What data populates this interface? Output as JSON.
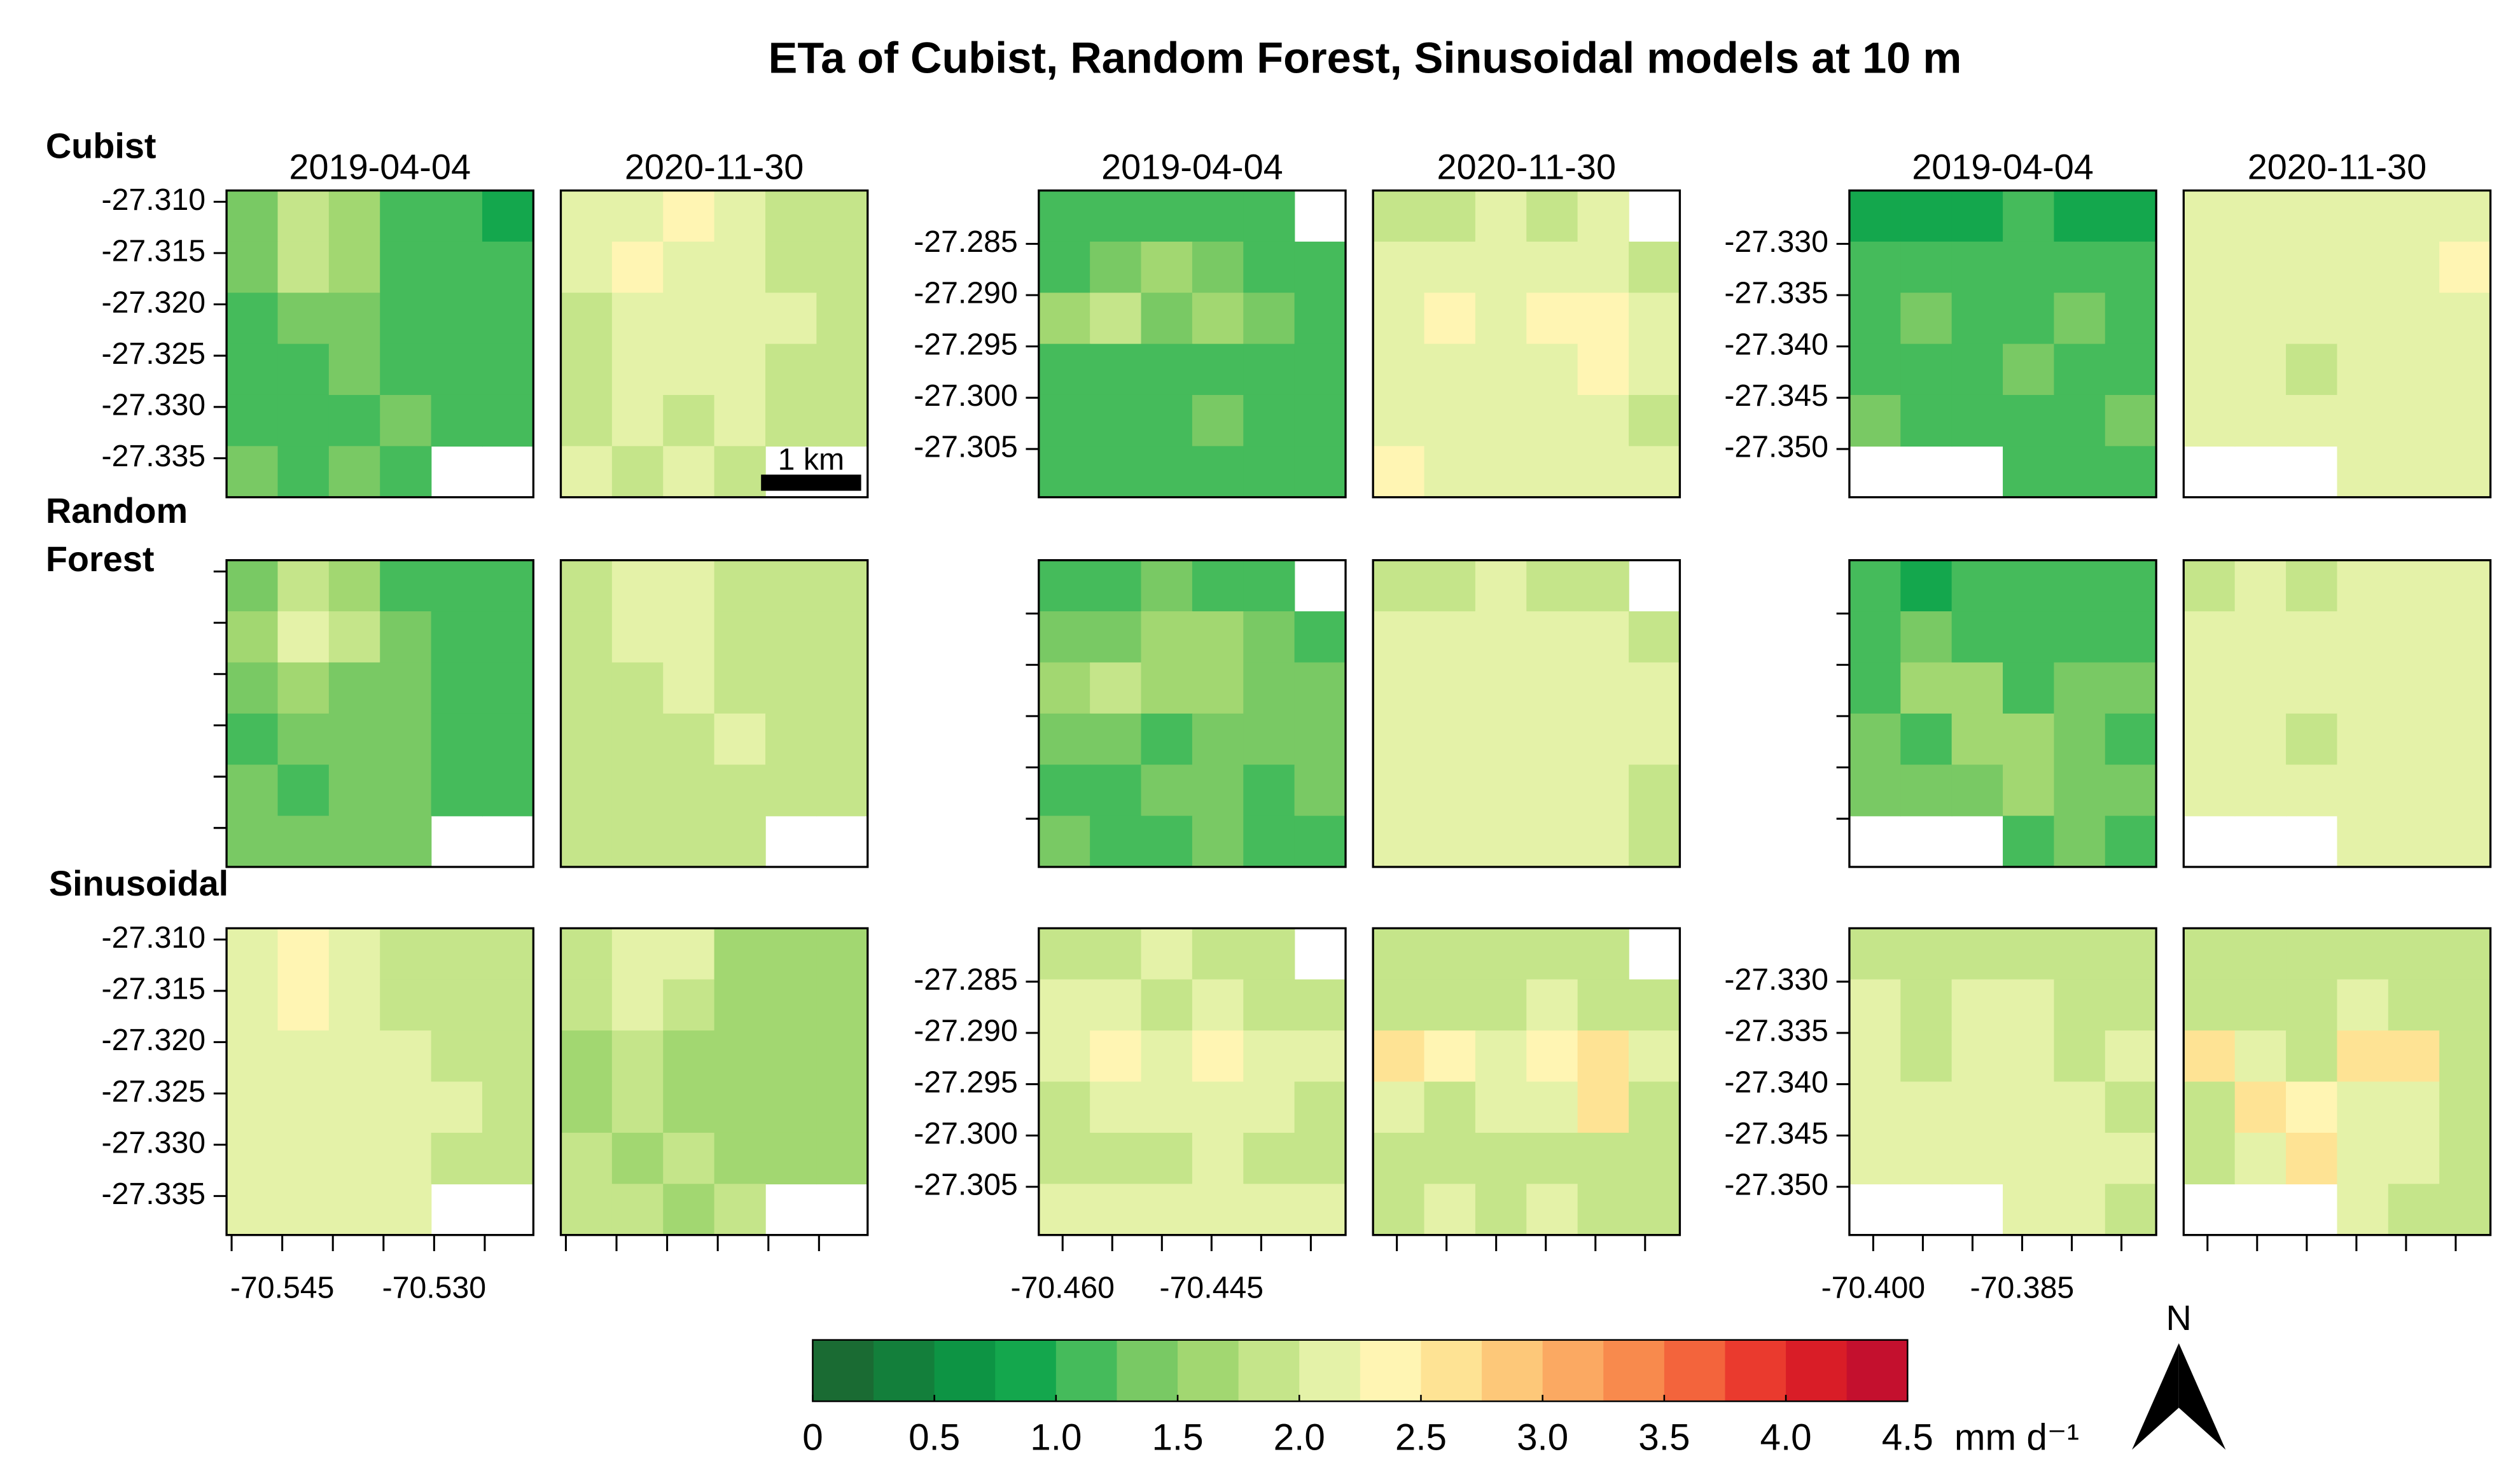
{
  "chart_data": {
    "type": "raster",
    "title": "ETa of Cubist, Random Forest, Sinusoidal models at 10 m",
    "row_labels": [
      [
        "Cubist"
      ],
      [
        "Random",
        "Forest"
      ],
      [
        "Sinusoidal"
      ]
    ],
    "scalebar": "1 km",
    "north": "N",
    "sites": [
      {
        "dates": [
          "2019-04-04",
          "2020-11-30"
        ],
        "xlim": [
          -70.5505,
          -70.5202
        ],
        "ylim": [
          -27.3388,
          -27.3089
        ],
        "xticks": [
          -70.545,
          {
            "value": -70.53,
            "label": "-70.530"
          }
        ],
        "xminor": [
          -70.55,
          -70.54,
          -70.535,
          -70.525
        ],
        "yticks": [
          {
            "value": -27.31,
            "label": "-27.310"
          },
          -27.315,
          {
            "value": -27.32,
            "label": "-27.320"
          },
          -27.325,
          {
            "value": -27.33,
            "label": "-27.330"
          },
          -27.335
        ]
      },
      {
        "dates": [
          "2019-04-04",
          "2020-11-30"
        ],
        "xlim": [
          -70.4624,
          -70.4315
        ],
        "ylim": [
          -27.3097,
          -27.2798
        ],
        "xticks": [
          {
            "value": -70.46,
            "label": "-70.460"
          },
          -70.445
        ],
        "xminor": [
          -70.455,
          -70.45,
          -70.44,
          -70.435
        ],
        "yticks": [
          -27.285,
          {
            "value": -27.29,
            "label": "-27.290"
          },
          -27.295,
          {
            "value": -27.3,
            "label": "-27.300"
          },
          -27.305
        ]
      },
      {
        "dates": [
          "2019-04-04",
          "2020-11-30"
        ],
        "xlim": [
          -70.4024,
          -70.3715
        ],
        "ylim": [
          -27.3547,
          -27.3248
        ],
        "xticks": [
          {
            "value": -70.4,
            "label": "-70.400"
          },
          -70.385
        ],
        "xminor": [
          -70.395,
          -70.39,
          -70.38,
          -70.375
        ],
        "yticks": [
          {
            "value": -27.33,
            "label": "-27.330"
          },
          -27.335,
          {
            "value": -27.34,
            "label": "-27.340"
          },
          -27.345,
          {
            "value": -27.35,
            "label": "-27.350"
          }
        ]
      }
    ],
    "panels": [
      [
        [
          [
            1.3,
            1.8,
            1.6,
            1.1,
            1.0,
            0.9
          ],
          [
            1.4,
            1.9,
            1.7,
            1.2,
            1.1,
            1.0
          ],
          [
            1.2,
            1.4,
            1.3,
            1.2,
            1.1,
            1.0
          ],
          [
            1.1,
            1.2,
            1.3,
            1.2,
            1.0,
            1.1
          ],
          [
            1.2,
            1.1,
            1.2,
            1.3,
            1.1,
            1.0
          ],
          [
            1.3,
            1.2,
            1.3,
            1.2,
            null,
            null
          ]
        ],
        [
          [
            2.0,
            2.2,
            2.3,
            2.0,
            1.9,
            1.9
          ],
          [
            2.1,
            2.3,
            2.2,
            2.0,
            1.9,
            1.8
          ],
          [
            1.9,
            2.0,
            2.1,
            2.0,
            2.1,
            1.9
          ],
          [
            1.9,
            2.0,
            2.0,
            2.1,
            1.9,
            1.8
          ],
          [
            1.9,
            2.0,
            1.9,
            2.0,
            1.9,
            1.9
          ],
          [
            2.0,
            1.9,
            2.0,
            1.9,
            null,
            null
          ]
        ],
        [
          [
            1.1,
            1.0,
            1.2,
            1.0,
            1.1,
            null
          ],
          [
            1.2,
            1.3,
            1.5,
            1.4,
            1.2,
            1.1
          ],
          [
            1.6,
            1.8,
            1.4,
            1.7,
            1.3,
            1.2
          ],
          [
            1.2,
            1.1,
            1.0,
            1.2,
            1.1,
            1.2
          ],
          [
            1.1,
            1.0,
            1.2,
            1.3,
            1.0,
            1.1
          ],
          [
            1.0,
            1.1,
            1.0,
            1.2,
            1.1,
            1.0
          ]
        ],
        [
          [
            1.8,
            1.9,
            2.0,
            1.9,
            2.0,
            null
          ],
          [
            2.0,
            2.1,
            2.0,
            2.2,
            2.1,
            1.9
          ],
          [
            2.2,
            2.3,
            2.2,
            2.3,
            2.4,
            2.0
          ],
          [
            2.1,
            2.2,
            2.1,
            2.2,
            2.3,
            2.1
          ],
          [
            2.2,
            2.1,
            2.0,
            2.1,
            2.0,
            1.9
          ],
          [
            2.3,
            2.0,
            2.1,
            2.0,
            2.1,
            2.0
          ]
        ],
        [
          [
            0.9,
            0.8,
            0.9,
            1.0,
            0.9,
            0.9
          ],
          [
            1.0,
            1.2,
            1.1,
            1.0,
            1.0,
            1.1
          ],
          [
            1.1,
            1.4,
            1.2,
            1.0,
            1.3,
            1.2
          ],
          [
            1.2,
            1.1,
            1.2,
            1.3,
            1.2,
            1.1
          ],
          [
            1.3,
            1.2,
            1.1,
            1.0,
            1.2,
            1.3
          ],
          [
            null,
            null,
            null,
            1.1,
            1.2,
            1.1
          ]
        ],
        [
          [
            2.0,
            2.1,
            2.0,
            2.1,
            2.2,
            2.1
          ],
          [
            2.1,
            2.2,
            2.1,
            2.0,
            2.2,
            2.3
          ],
          [
            2.0,
            2.1,
            2.2,
            2.1,
            2.0,
            2.2
          ],
          [
            2.1,
            2.2,
            1.9,
            2.0,
            2.1,
            2.2
          ],
          [
            2.0,
            2.1,
            2.2,
            2.1,
            2.0,
            2.1
          ],
          [
            null,
            null,
            null,
            2.1,
            2.0,
            2.1
          ]
        ]
      ],
      [
        [
          [
            1.4,
            1.9,
            1.7,
            1.2,
            1.1,
            1.0
          ],
          [
            1.5,
            2.0,
            1.8,
            1.3,
            1.1,
            1.0
          ],
          [
            1.3,
            1.5,
            1.4,
            1.3,
            1.2,
            1.1
          ],
          [
            1.2,
            1.3,
            1.4,
            1.3,
            1.1,
            1.2
          ],
          [
            1.3,
            1.2,
            1.3,
            1.3,
            1.2,
            1.1
          ],
          [
            1.4,
            1.3,
            1.4,
            1.3,
            null,
            null
          ]
        ],
        [
          [
            1.9,
            2.0,
            2.1,
            1.9,
            1.9,
            1.8
          ],
          [
            1.9,
            2.1,
            2.1,
            1.9,
            1.8,
            1.8
          ],
          [
            1.8,
            1.9,
            2.0,
            1.9,
            1.9,
            1.8
          ],
          [
            1.8,
            1.9,
            1.9,
            2.0,
            1.8,
            1.8
          ],
          [
            1.8,
            1.9,
            1.8,
            1.9,
            1.8,
            1.8
          ],
          [
            1.9,
            1.8,
            1.9,
            1.8,
            null,
            null
          ]
        ],
        [
          [
            1.1,
            1.1,
            1.3,
            1.2,
            1.2,
            null
          ],
          [
            1.3,
            1.4,
            1.6,
            1.5,
            1.3,
            1.2
          ],
          [
            1.6,
            1.8,
            1.6,
            1.7,
            1.4,
            1.3
          ],
          [
            1.4,
            1.3,
            1.2,
            1.4,
            1.3,
            1.4
          ],
          [
            1.2,
            1.1,
            1.3,
            1.4,
            1.2,
            1.3
          ],
          [
            1.3,
            1.2,
            1.1,
            1.3,
            1.2,
            1.2
          ]
        ],
        [
          [
            1.8,
            1.9,
            2.0,
            1.9,
            1.9,
            null
          ],
          [
            2.0,
            2.0,
            2.1,
            2.1,
            2.0,
            1.9
          ],
          [
            2.1,
            2.2,
            2.2,
            2.2,
            2.2,
            2.0
          ],
          [
            2.1,
            2.1,
            2.2,
            2.1,
            2.2,
            2.0
          ],
          [
            2.1,
            2.0,
            2.1,
            2.1,
            2.0,
            1.9
          ],
          [
            2.1,
            2.0,
            2.0,
            2.0,
            2.0,
            1.9
          ]
        ],
        [
          [
            1.0,
            0.9,
            1.0,
            1.1,
            1.0,
            1.0
          ],
          [
            1.1,
            1.3,
            1.2,
            1.1,
            1.1,
            1.2
          ],
          [
            1.2,
            1.5,
            1.5,
            1.2,
            1.3,
            1.3
          ],
          [
            1.3,
            1.2,
            1.5,
            1.5,
            1.3,
            1.2
          ],
          [
            1.4,
            1.3,
            1.3,
            1.5,
            1.4,
            1.4
          ],
          [
            null,
            null,
            null,
            1.2,
            1.3,
            1.2
          ]
        ],
        [
          [
            1.9,
            2.0,
            1.9,
            2.0,
            2.1,
            2.0
          ],
          [
            2.0,
            2.1,
            2.0,
            2.0,
            2.1,
            2.1
          ],
          [
            2.0,
            2.0,
            2.1,
            2.0,
            2.0,
            2.1
          ],
          [
            2.0,
            2.1,
            1.9,
            2.0,
            2.0,
            2.1
          ],
          [
            2.0,
            2.0,
            2.1,
            2.0,
            2.0,
            2.0
          ],
          [
            null,
            null,
            null,
            2.0,
            2.0,
            2.0
          ]
        ]
      ],
      [
        [
          [
            2.0,
            2.3,
            2.2,
            1.9,
            1.8,
            1.8
          ],
          [
            2.1,
            2.4,
            2.1,
            1.9,
            1.8,
            1.8
          ],
          [
            2.0,
            2.1,
            2.0,
            2.0,
            1.9,
            1.9
          ],
          [
            2.0,
            2.1,
            2.1,
            2.0,
            2.0,
            1.9
          ],
          [
            2.1,
            2.0,
            2.1,
            2.0,
            1.9,
            1.9
          ],
          [
            2.2,
            2.1,
            2.1,
            2.0,
            null,
            null
          ]
        ],
        [
          [
            1.8,
            2.2,
            2.1,
            1.7,
            1.7,
            1.7
          ],
          [
            1.8,
            2.1,
            1.9,
            1.7,
            1.7,
            1.7
          ],
          [
            1.7,
            1.8,
            1.7,
            1.7,
            1.7,
            1.7
          ],
          [
            1.7,
            1.8,
            1.7,
            1.7,
            1.7,
            1.7
          ],
          [
            1.8,
            1.7,
            1.8,
            1.7,
            1.7,
            1.7
          ],
          [
            1.8,
            1.8,
            1.7,
            1.8,
            null,
            null
          ]
        ],
        [
          [
            1.9,
            1.9,
            2.0,
            1.9,
            1.9,
            null
          ],
          [
            2.0,
            2.1,
            1.9,
            2.0,
            1.9,
            1.9
          ],
          [
            2.2,
            2.3,
            2.2,
            2.3,
            2.1,
            2.0
          ],
          [
            1.9,
            2.0,
            2.1,
            2.0,
            2.0,
            1.9
          ],
          [
            1.9,
            1.8,
            1.9,
            2.0,
            1.9,
            1.9
          ],
          [
            2.1,
            2.0,
            2.1,
            2.2,
            2.0,
            2.1
          ]
        ],
        [
          [
            1.8,
            1.9,
            1.8,
            1.9,
            1.8,
            null
          ],
          [
            1.8,
            1.8,
            1.9,
            2.2,
            1.9,
            1.9
          ],
          [
            2.5,
            2.4,
            2.2,
            2.3,
            2.6,
            2.0
          ],
          [
            2.0,
            1.9,
            2.1,
            2.1,
            2.7,
            1.9
          ],
          [
            1.8,
            1.8,
            1.8,
            1.9,
            1.9,
            1.8
          ],
          [
            1.9,
            2.0,
            1.9,
            2.0,
            1.9,
            1.9
          ]
        ],
        [
          [
            1.9,
            1.9,
            1.8,
            1.9,
            1.8,
            1.8
          ],
          [
            2.0,
            1.8,
            2.1,
            2.0,
            1.8,
            1.9
          ],
          [
            2.1,
            1.9,
            2.2,
            2.1,
            1.9,
            2.0
          ],
          [
            2.0,
            2.1,
            2.0,
            2.2,
            2.1,
            1.9
          ],
          [
            2.1,
            2.2,
            2.1,
            2.1,
            2.2,
            2.0
          ],
          [
            null,
            null,
            null,
            2.1,
            2.0,
            1.9
          ]
        ],
        [
          [
            1.8,
            1.8,
            1.8,
            1.9,
            1.8,
            1.8
          ],
          [
            1.9,
            1.8,
            1.9,
            2.1,
            1.9,
            1.8
          ],
          [
            2.5,
            2.1,
            1.9,
            2.6,
            2.5,
            1.9
          ],
          [
            1.8,
            2.6,
            2.3,
            2.0,
            2.1,
            1.9
          ],
          [
            1.9,
            2.0,
            2.7,
            2.1,
            2.2,
            1.9
          ],
          [
            null,
            null,
            null,
            2.0,
            1.9,
            1.8
          ]
        ]
      ]
    ],
    "colorbar": {
      "breaks": [
        0,
        0.25,
        0.5,
        0.75,
        1,
        1.25,
        1.5,
        1.75,
        2,
        2.25,
        2.5,
        2.75,
        3,
        3.25,
        3.5,
        3.75,
        4,
        4.25,
        4.5
      ],
      "colors": [
        "#1a6b33",
        "#137f3b",
        "#0d9444",
        "#14a74d",
        "#45bb5b",
        "#79c964",
        "#a2d771",
        "#c5e58a",
        "#e4f2a8",
        "#fff5b3",
        "#fee394",
        "#fdc879",
        "#fba962",
        "#f88a4d",
        "#f3643c",
        "#ea3a2e",
        "#d91d27",
        "#c4102e"
      ],
      "ticks": [
        0,
        0.5,
        {
          "value": 1,
          "label": "1.0"
        },
        1.5,
        {
          "value": 2,
          "label": "2.0"
        },
        2.5,
        {
          "value": 3,
          "label": "3.0"
        },
        3.5,
        {
          "value": 4,
          "label": "4.0"
        },
        4.5
      ],
      "unit": "mm d⁻¹"
    }
  }
}
